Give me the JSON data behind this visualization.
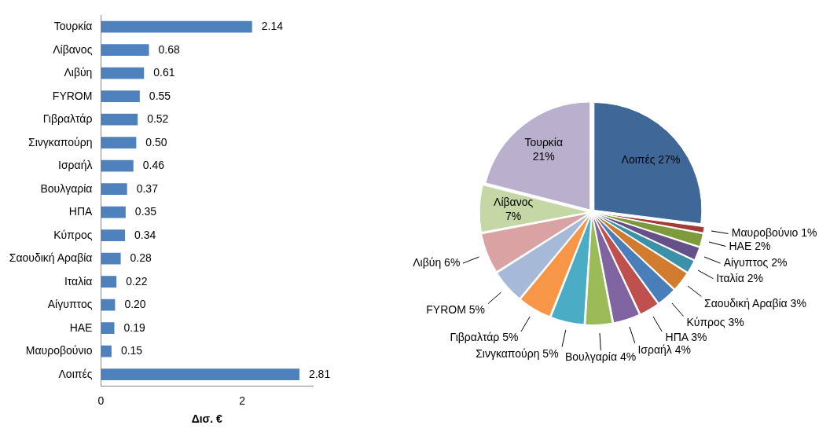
{
  "chart_data": [
    {
      "type": "bar",
      "orientation": "horizontal",
      "xlabel": "Δισ. €",
      "categories": [
        "Τουρκία",
        "Λίβανος",
        "Λιβύη",
        "FYROM",
        "Γιβραλτάρ",
        "Σινγκαπούρη",
        "Ισραήλ",
        "Βουλγαρία",
        "ΗΠΑ",
        "Κύπρος",
        "Σαουδική Αραβία",
        "Ιταλία",
        "Αίγυπτος",
        "ΗΑΕ",
        "Μαυροβούνιο",
        "Λοιπές"
      ],
      "values": [
        2.14,
        0.68,
        0.61,
        0.55,
        0.52,
        0.5,
        0.46,
        0.37,
        0.35,
        0.34,
        0.28,
        0.22,
        0.2,
        0.19,
        0.15,
        2.81
      ],
      "value_labels": [
        "2.14",
        "0.68",
        "0.61",
        "0.55",
        "0.52",
        "0.50",
        "0.46",
        "0.37",
        "0.35",
        "0.34",
        "0.28",
        "0.22",
        "0.20",
        "0.19",
        "0.15",
        "2.81"
      ],
      "color": "#4f81bd",
      "xlim": [
        0,
        3
      ],
      "xticks": [
        0,
        2
      ],
      "grid": false,
      "legend": false
    },
    {
      "type": "pie",
      "categories": [
        "Λοιπές",
        "Μαυροβούνιο",
        "ΗΑΕ",
        "Αίγυπτος",
        "Ιταλία",
        "Σαουδική Αραβία",
        "Κύπρος",
        "ΗΠΑ",
        "Ισραήλ",
        "Βουλγαρία",
        "Σινγκαπούρη",
        "Γιβραλτάρ",
        "FYROM",
        "Λιβύη",
        "Λίβανος",
        "Τουρκία"
      ],
      "values": [
        27,
        1,
        2,
        2,
        2,
        3,
        3,
        3,
        4,
        4,
        5,
        5,
        5,
        6,
        7,
        21
      ],
      "colors": [
        "#3f6899",
        "#a33b38",
        "#7d9a3d",
        "#65508a",
        "#3a91a8",
        "#d17b2e",
        "#4a7ebb",
        "#c0504d",
        "#8064a2",
        "#9bbb59",
        "#4bacc6",
        "#f79646",
        "#a7b9d9",
        "#d8a3a2",
        "#c4d7a4",
        "#b8b0cc"
      ],
      "value_labels": [
        "27%",
        "1%",
        "2%",
        "2%",
        "2%",
        "3%",
        "3%",
        "3%",
        "4%",
        "4%",
        "5%",
        "5%",
        "5%",
        "6%",
        "7%",
        "21%"
      ],
      "legend": false
    }
  ]
}
